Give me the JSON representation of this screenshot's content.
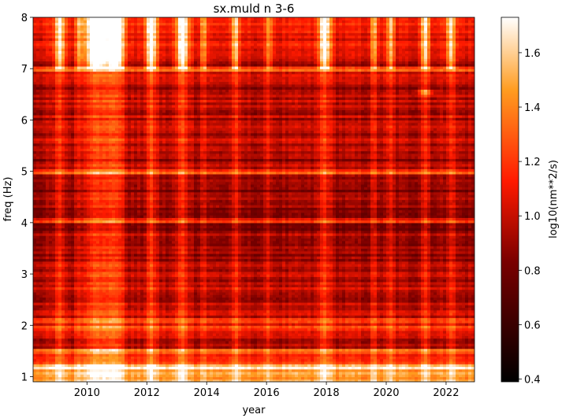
{
  "chart_data": {
    "type": "heatmap",
    "title": "sx.muld n 3-6",
    "xlabel": "year",
    "ylabel": "freq (Hz)",
    "colorbar_label": "log10(nm**2/s)",
    "colormap": "gist_heat",
    "xlim": [
      2008.2,
      2022.95
    ],
    "ylim": [
      0.9,
      8.0
    ],
    "clim": [
      0.39,
      1.73
    ],
    "x_ticks": [
      2010,
      2012,
      2014,
      2016,
      2018,
      2020,
      2022
    ],
    "y_ticks": [
      1,
      2,
      3,
      4,
      5,
      6,
      7,
      8
    ],
    "colorbar_ticks": [
      0.4,
      0.6,
      0.8,
      1.0,
      1.2,
      1.4,
      1.6
    ],
    "hot_columns": [
      {
        "year": 2009.1,
        "width": 0.18,
        "strength": 0.45
      },
      {
        "year": 2009.75,
        "width": 0.12,
        "strength": 0.3
      },
      {
        "year": 2010.3,
        "width": 0.35,
        "strength": 0.75
      },
      {
        "year": 2010.95,
        "width": 0.3,
        "strength": 0.7
      },
      {
        "year": 2012.15,
        "width": 0.2,
        "strength": 0.55
      },
      {
        "year": 2013.2,
        "width": 0.22,
        "strength": 0.55
      },
      {
        "year": 2013.9,
        "width": 0.12,
        "strength": 0.3
      },
      {
        "year": 2014.95,
        "width": 0.12,
        "strength": 0.4
      },
      {
        "year": 2016.1,
        "width": 0.12,
        "strength": 0.25
      },
      {
        "year": 2017.95,
        "width": 0.2,
        "strength": 0.55
      },
      {
        "year": 2019.6,
        "width": 0.12,
        "strength": 0.3
      },
      {
        "year": 2020.15,
        "width": 0.12,
        "strength": 0.35
      },
      {
        "year": 2021.3,
        "width": 0.15,
        "strength": 0.45
      },
      {
        "year": 2022.15,
        "width": 0.15,
        "strength": 0.45
      }
    ],
    "hot_lines_hz": [
      7.0,
      5.0,
      4.05,
      2.1,
      1.95,
      1.5,
      1.2
    ],
    "values_note_hz": {
      "high_freq_band": [
        7.0,
        8.0
      ],
      "low_freq_band": [
        0.9,
        1.6
      ]
    }
  }
}
